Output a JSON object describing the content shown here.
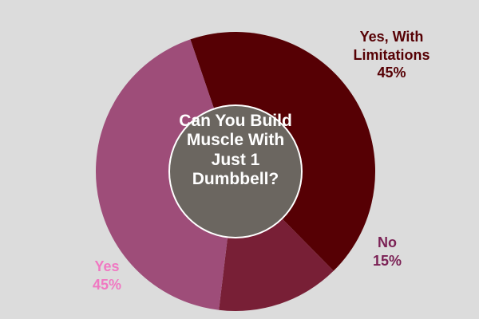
{
  "chart_data": {
    "type": "pie",
    "title_lines": [
      "Can You Build",
      "Muscle With",
      "Just 1",
      "Dumbbell?"
    ],
    "slices": [
      {
        "label_lines": [
          "Yes, With",
          "Limitations"
        ],
        "value_label": "45%",
        "value": 45,
        "color": "#560004",
        "label_color": "#560004"
      },
      {
        "label_lines": [
          "No"
        ],
        "value_label": "15%",
        "value": 15,
        "color": "#781f36",
        "label_color": "#7b2155"
      },
      {
        "label_lines": [
          "Yes"
        ],
        "value_label": "45%",
        "value": 45,
        "color": "#9e4d79",
        "label_color": "#f078c2"
      }
    ],
    "center_color": "#6b6660",
    "center_border_color": "#ffffff"
  }
}
